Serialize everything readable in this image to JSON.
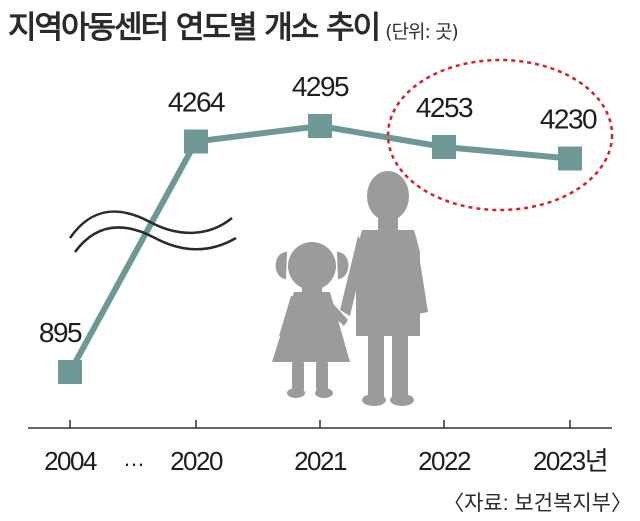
{
  "title": "지역아동센터 연도별 개소 추이",
  "unit": "(단위: 곳)",
  "source": "〈자료: 보건복지부〉",
  "colors": {
    "line": "#6e9896",
    "marker": "#6e9896",
    "axis": "#333333",
    "highlight": "#d8202c",
    "silhouette": "#9b9b9b"
  },
  "chart_data": {
    "type": "line",
    "x": [
      "2004",
      "2020",
      "2021",
      "2022",
      "2023년"
    ],
    "gap_label": "…",
    "values": [
      895,
      4264,
      4295,
      4253,
      4230
    ],
    "highlight": [
      "2022",
      "2023년"
    ],
    "axis_break": true,
    "grid": false,
    "legend": "none"
  }
}
